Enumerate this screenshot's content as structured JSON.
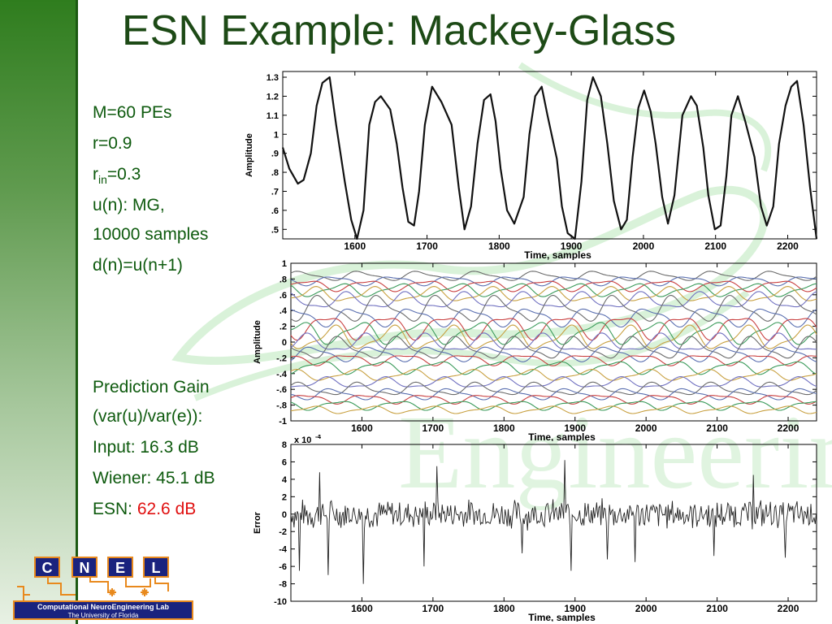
{
  "title": "ESN Example: Mackey-Glass",
  "params": {
    "m": "M=60 PEs",
    "r": "r=0.9",
    "rin_base": "r",
    "rin_sub": "in",
    "rin_val": "=0.3",
    "un": "u(n): MG,",
    "samples": "10000 samples",
    "dn": "d(n)=u(n+1)"
  },
  "gain": {
    "heading": "Prediction Gain",
    "ratio": "(var(u)/var(e)):",
    "input": "Input: 16.3 dB",
    "wiener": "Wiener: 45.1 dB",
    "esn_label": "ESN:",
    "esn_value": "62.6 dB"
  },
  "colors": {
    "title": "#1d4a16",
    "text": "#0e5a0e",
    "highlight": "#e01010",
    "logo_box": "#1a237e",
    "logo_accent": "#e8891d"
  },
  "logo": {
    "letters": [
      "C",
      "N",
      "E",
      "L"
    ],
    "line1": "Computational NeuroEngineering Lab",
    "line2": "The University of Florida"
  },
  "watermark_text": "Engineering",
  "chart_data": [
    {
      "type": "line",
      "title": "",
      "xlabel": "Time, samples",
      "ylabel": "Amplitude",
      "xlim": [
        1500,
        2240
      ],
      "ylim": [
        0.45,
        1.33
      ],
      "xticks": [
        1600,
        1700,
        1800,
        1900,
        2000,
        2100,
        2200
      ],
      "yticks": [
        0.5,
        0.6,
        0.7,
        0.8,
        0.9,
        1,
        1.1,
        1.2,
        1.3
      ],
      "series": [
        {
          "x": [
            1500,
            1509,
            1521,
            1529,
            1539,
            1547,
            1555,
            1565,
            1574,
            1586,
            1595,
            1603,
            1612,
            1620,
            1628,
            1636,
            1649,
            1658,
            1666,
            1674,
            1682,
            1689,
            1697,
            1707,
            1720,
            1734,
            1744,
            1752,
            1761,
            1770,
            1779,
            1788,
            1795,
            1802,
            1811,
            1821,
            1834,
            1842,
            1850,
            1859,
            1867,
            1880,
            1887,
            1895,
            1905,
            1914,
            1922,
            1930,
            1941,
            1950,
            1959,
            1969,
            1977,
            1985,
            1993,
            2001,
            2010,
            2017,
            2026,
            2034,
            2043,
            2054,
            2066,
            2074,
            2083,
            2090,
            2099,
            2107,
            2115,
            2122,
            2131,
            2141,
            2154,
            2163,
            2171,
            2180,
            2188,
            2197,
            2205,
            2213,
            2222,
            2231,
            2240
          ],
          "y": [
            0.93,
            0.82,
            0.74,
            0.76,
            0.9,
            1.15,
            1.27,
            1.3,
            1.05,
            0.75,
            0.55,
            0.45,
            0.6,
            1.05,
            1.17,
            1.2,
            1.13,
            0.95,
            0.72,
            0.54,
            0.52,
            0.7,
            1.05,
            1.25,
            1.17,
            1.05,
            0.72,
            0.5,
            0.62,
            0.95,
            1.18,
            1.21,
            1.07,
            0.82,
            0.6,
            0.53,
            0.67,
            1.0,
            1.2,
            1.25,
            1.1,
            0.87,
            0.62,
            0.48,
            0.45,
            0.75,
            1.18,
            1.3,
            1.2,
            0.95,
            0.65,
            0.5,
            0.55,
            0.88,
            1.14,
            1.23,
            1.12,
            0.95,
            0.67,
            0.53,
            0.68,
            1.1,
            1.2,
            1.15,
            0.93,
            0.68,
            0.5,
            0.52,
            0.78,
            1.1,
            1.2,
            1.07,
            0.88,
            0.62,
            0.52,
            0.62,
            0.95,
            1.15,
            1.25,
            1.28,
            1.05,
            0.72,
            0.45
          ]
        }
      ]
    },
    {
      "type": "line",
      "title": "",
      "xlabel": "Time, samples",
      "ylabel": "Amplitude",
      "xlim": [
        1500,
        2240
      ],
      "ylim": [
        -1,
        1
      ],
      "xticks": [
        1600,
        1700,
        1800,
        1900,
        2000,
        2100,
        2200
      ],
      "yticks": [
        -1,
        -0.8,
        -0.6,
        -0.4,
        -0.2,
        0,
        0.2,
        0.4,
        0.6,
        0.8,
        1
      ],
      "series_count": 60,
      "series_colors": [
        "#6b6b6b",
        "#5a6fb0",
        "#c94040",
        "#3a9a5a",
        "#c8a040",
        "#7070c0"
      ],
      "series": [
        {
          "offset": 0.84,
          "amplitude": 0.05
        },
        {
          "offset": 0.78,
          "amplitude": 0.05
        },
        {
          "offset": 0.72,
          "amplitude": 0.06
        },
        {
          "offset": 0.66,
          "amplitude": 0.07
        },
        {
          "offset": 0.6,
          "amplitude": 0.08
        },
        {
          "offset": 0.52,
          "amplitude": 0.09
        },
        {
          "offset": 0.42,
          "amplitude": 0.14
        },
        {
          "offset": 0.32,
          "amplitude": 0.1
        },
        {
          "offset": 0.2,
          "amplitude": 0.13
        },
        {
          "offset": 0.12,
          "amplitude": 0.12
        },
        {
          "offset": 0.05,
          "amplitude": 0.13
        },
        {
          "offset": -0.02,
          "amplitude": 0.1
        },
        {
          "offset": -0.08,
          "amplitude": 0.12
        },
        {
          "offset": -0.15,
          "amplitude": 0.08
        },
        {
          "offset": -0.22,
          "amplitude": 0.06
        },
        {
          "offset": -0.32,
          "amplitude": 0.07
        },
        {
          "offset": -0.42,
          "amplitude": 0.06
        },
        {
          "offset": -0.52,
          "amplitude": 0.06
        },
        {
          "offset": -0.6,
          "amplitude": 0.07
        },
        {
          "offset": -0.66,
          "amplitude": 0.06
        },
        {
          "offset": -0.72,
          "amplitude": 0.05
        },
        {
          "offset": -0.8,
          "amplitude": 0.05
        },
        {
          "offset": -0.86,
          "amplitude": 0.04
        }
      ]
    },
    {
      "type": "line",
      "title": "",
      "xlabel": "Time, samples",
      "ylabel": "Error",
      "scale_label": "x 10",
      "scale_exp": "-4",
      "xlim": [
        1500,
        2240
      ],
      "ylim": [
        -10,
        8
      ],
      "xticks": [
        1600,
        1700,
        1800,
        1900,
        2000,
        2100,
        2200
      ],
      "yticks": [
        -10,
        -8,
        -6,
        -4,
        -2,
        0,
        2,
        4,
        6,
        8
      ],
      "series": [
        {
          "noise_level": 1.6,
          "spikes_x": [
            1512,
            1541,
            1553,
            1602,
            1688,
            1705,
            1826,
            1885,
            1894,
            1945,
            1985,
            2095,
            2151,
            2196
          ],
          "spikes_y": [
            -6.5,
            4.8,
            -7.0,
            -8.0,
            -6.0,
            5.5,
            -4.5,
            6.2,
            -6.5,
            -5.2,
            -5.5,
            -4.8,
            4.5,
            -5.0
          ]
        }
      ]
    }
  ]
}
